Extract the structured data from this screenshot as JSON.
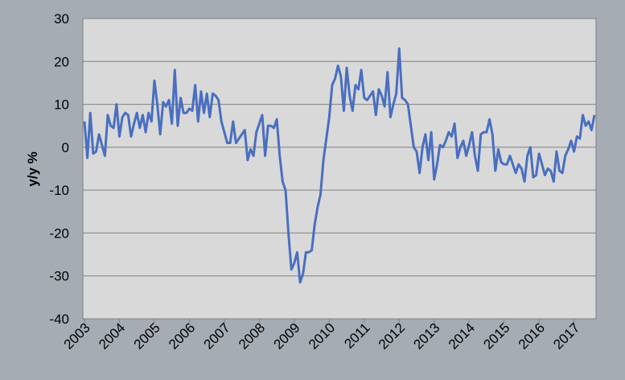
{
  "chart_data": {
    "type": "line",
    "ylabel": "y/y %",
    "categories": [
      "2003",
      null,
      null,
      null,
      null,
      null,
      null,
      null,
      null,
      null,
      null,
      null,
      "2004",
      null,
      null,
      null,
      null,
      null,
      null,
      null,
      null,
      null,
      null,
      null,
      "2005",
      null,
      null,
      null,
      null,
      null,
      null,
      null,
      null,
      null,
      null,
      null,
      "2006",
      null,
      null,
      null,
      null,
      null,
      null,
      null,
      null,
      null,
      null,
      null,
      "2007",
      null,
      null,
      null,
      null,
      null,
      null,
      null,
      null,
      null,
      null,
      null,
      "2008",
      null,
      null,
      null,
      null,
      null,
      null,
      null,
      null,
      null,
      null,
      null,
      "2009",
      null,
      null,
      null,
      null,
      null,
      null,
      null,
      null,
      null,
      null,
      null,
      "2010",
      null,
      null,
      null,
      null,
      null,
      null,
      null,
      null,
      null,
      null,
      null,
      "2011",
      null,
      null,
      null,
      null,
      null,
      null,
      null,
      null,
      null,
      null,
      null,
      "2012",
      null,
      null,
      null,
      null,
      null,
      null,
      null,
      null,
      null,
      null,
      null,
      "2013",
      null,
      null,
      null,
      null,
      null,
      null,
      null,
      null,
      null,
      null,
      null,
      "2014",
      null,
      null,
      null,
      null,
      null,
      null,
      null,
      null,
      null,
      null,
      null,
      "2015",
      null,
      null,
      null,
      null,
      null,
      null,
      null,
      null,
      null,
      null,
      null,
      "2016",
      null,
      null,
      null,
      null,
      null,
      null,
      null,
      null,
      null,
      null,
      null,
      "2017",
      null,
      null,
      null,
      null,
      null,
      null,
      null
    ],
    "series": [
      {
        "color": "#4a6fc0",
        "values": [
          6,
          -2.5,
          8,
          -1.5,
          -1,
          3,
          0.5,
          -2,
          7.5,
          5,
          4.5,
          10,
          2.5,
          7,
          8,
          7.5,
          2.5,
          5.5,
          8,
          4.5,
          7.5,
          3.5,
          8,
          6,
          15.5,
          10,
          3,
          10.5,
          9.5,
          11,
          5.5,
          18,
          5,
          11.5,
          8,
          8,
          9,
          8.5,
          14.5,
          6,
          13,
          8,
          12.5,
          7,
          12.5,
          12,
          11,
          6,
          3.5,
          1,
          1,
          6,
          1,
          2,
          3,
          4,
          -3,
          -0.5,
          -2,
          3.5,
          5.5,
          7.5,
          -2,
          5,
          5,
          4.5,
          6.5,
          -2,
          -8,
          -10,
          -20,
          -28.5,
          -27,
          -24.5,
          -31.5,
          -29.5,
          -24.5,
          -24.5,
          -24,
          -18,
          -14,
          -11,
          -3,
          2,
          7,
          14.5,
          16,
          19,
          16.5,
          8.5,
          18.5,
          12,
          8.5,
          14.5,
          13.5,
          18,
          11.5,
          11,
          12,
          13,
          7.5,
          13.5,
          12,
          9.5,
          17.5,
          7,
          10,
          12.5,
          23,
          11.5,
          11,
          10,
          5,
          0,
          -1,
          -6,
          0,
          3,
          -3,
          3.5,
          -7.5,
          -4,
          0.5,
          0,
          1.5,
          3.5,
          2.5,
          5.5,
          -2.5,
          0,
          1.5,
          -2,
          0.5,
          3.5,
          -2,
          -5.5,
          3,
          3.5,
          3.5,
          6.5,
          3,
          -5.5,
          -0.5,
          -3.5,
          -4,
          -4,
          -2,
          -4,
          -6,
          -4,
          -5,
          -8,
          -2,
          0,
          -7,
          -6.5,
          -1.5,
          -4,
          -6.5,
          -5,
          -5.5,
          -8,
          -1,
          -5.5,
          -6,
          -2,
          -0.5,
          1.5,
          -1,
          2.5,
          2,
          7.5,
          5,
          6,
          4,
          7.5
        ]
      }
    ],
    "ylim": [
      -40,
      30
    ],
    "yticks": [
      -40,
      -30,
      -20,
      -10,
      0,
      10,
      20,
      30
    ],
    "grid": true
  }
}
